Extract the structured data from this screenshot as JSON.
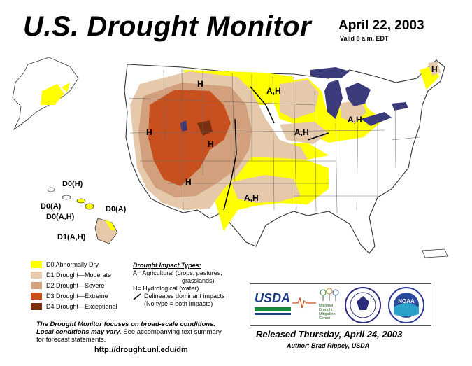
{
  "header": {
    "title": "U.S. Drought Monitor",
    "date": "April 22, 2003",
    "valid": "Valid 8 a.m. EDT"
  },
  "map_labels": {
    "nw_h": "H",
    "west_h": "H",
    "central_h": "H",
    "sw_h": "H",
    "north_ah": "A,H",
    "plains_ah": "A,H",
    "michigan_ah": "A,H",
    "south_ah": "A,H",
    "maine_h": "H"
  },
  "hawaii_labels": {
    "d0h": "D0(H)",
    "d0a_left": "D0(A)",
    "d0ah": "D0(A,H)",
    "d0a_right": "D0(A)",
    "d1ah": "D1(A,H)"
  },
  "legend": {
    "items": [
      {
        "label": "D0 Abnormally Dry",
        "color": "#ffff00"
      },
      {
        "label": "D1 Drought—Moderate",
        "color": "#e6c8aa"
      },
      {
        "label": "D2 Drought—Severe",
        "color": "#d2a07d"
      },
      {
        "label": "D3 Drought—Extreme",
        "color": "#c8501e"
      },
      {
        "label": "D4 Drought—Exceptional",
        "color": "#7a3010"
      }
    ]
  },
  "impact": {
    "title": "Drought Impact Types:",
    "a_line": "A= Agricultural (crops, pastures,",
    "a_line2": "grasslands)",
    "h_line": "H= Hydrological (water)",
    "delineates": "Delineates dominant impacts",
    "no_type": "(No type = both impacts)"
  },
  "logos": {
    "usda": "USDA",
    "ndmc_1": "National",
    "ndmc_2": "Drought",
    "ndmc_3": "Mitigation",
    "ndmc_4": "Center",
    "noaa": "NOAA"
  },
  "footer": {
    "note_bold_1": "The Drought Monitor focuses on broad-scale conditions.",
    "note_bold_2": "Local conditions may vary.",
    "note_rest_2": " See accompanying text summary",
    "note_3": "for forecast statements.",
    "url": "http://drought.unl.edu/dm",
    "released": "Released Thursday, April 24, 2003",
    "author_label": "Author:",
    "author_name": "Brad Rippey, USDA"
  }
}
